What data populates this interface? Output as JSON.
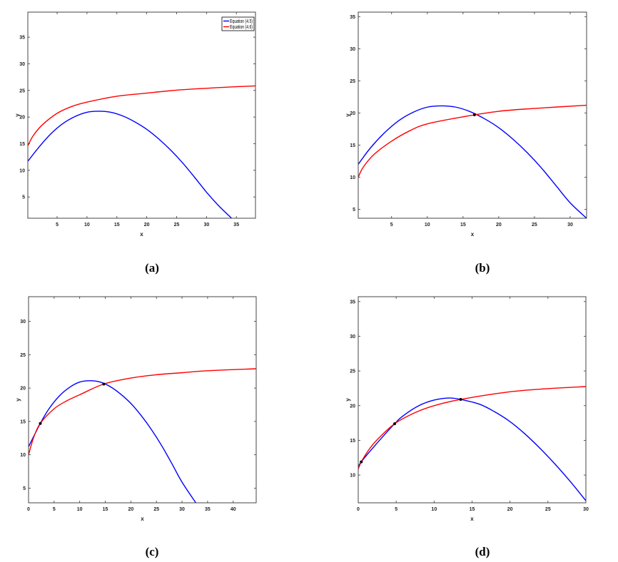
{
  "chart_data": [
    {
      "type": "line",
      "caption": "(a)",
      "xlabel": "x",
      "ylabel": "y",
      "xlim": [
        0.1,
        38.2
      ],
      "ylim": [
        1,
        39.7
      ],
      "xticks": [
        5,
        10,
        15,
        20,
        25,
        30,
        35
      ],
      "yticks": [
        5,
        10,
        15,
        20,
        25,
        30,
        35
      ],
      "grid": false,
      "legend": {
        "placement": "top-right",
        "entries": [
          "Equation (4.5)",
          "Equation (4.6)"
        ]
      },
      "series": [
        {
          "name": "Equation (4.5)",
          "color": "#0000ff",
          "x": [
            0.1,
            2,
            4,
            6,
            8,
            10,
            12,
            14,
            16,
            18,
            20,
            22,
            24,
            26,
            28,
            30,
            32,
            34.2
          ],
          "y": [
            11.7,
            14.4,
            16.9,
            18.8,
            20.1,
            20.9,
            21.1,
            20.9,
            20.2,
            19.1,
            17.7,
            15.9,
            13.8,
            11.4,
            8.7,
            5.9,
            3.4,
            1.0
          ]
        },
        {
          "name": "Equation (4.6)",
          "color": "#ff0000",
          "x": [
            0.1,
            1,
            2.5,
            5,
            7.5,
            10,
            15,
            20,
            25,
            30,
            35,
            38.2
          ],
          "y": [
            14.6,
            16.5,
            18.5,
            20.7,
            22.0,
            22.8,
            23.9,
            24.5,
            25.05,
            25.4,
            25.7,
            25.85
          ]
        }
      ],
      "intersections": []
    },
    {
      "type": "line",
      "caption": "(b)",
      "xlabel": "x",
      "ylabel": "y",
      "xlim": [
        0.33,
        32.3
      ],
      "ylim": [
        3.6,
        35.7
      ],
      "xticks": [
        5,
        10,
        15,
        20,
        25,
        30
      ],
      "yticks": [
        5,
        10,
        15,
        20,
        25,
        30,
        35
      ],
      "grid": false,
      "series": [
        {
          "color": "#0000ff",
          "x": [
            0.33,
            2,
            4,
            6,
            8,
            10,
            12,
            14,
            16,
            18,
            20,
            22,
            24,
            26,
            28,
            30,
            32.3
          ],
          "y": [
            12.0,
            14.5,
            16.9,
            18.8,
            20.1,
            20.9,
            21.1,
            20.9,
            20.2,
            19.1,
            17.7,
            15.9,
            13.8,
            11.4,
            8.7,
            6.0,
            3.6
          ]
        },
        {
          "color": "#ff0000",
          "x": [
            0.33,
            1,
            2.5,
            5,
            7.5,
            10,
            15,
            20,
            25,
            32.3
          ],
          "y": [
            10.0,
            11.5,
            13.5,
            15.6,
            17.2,
            18.3,
            19.4,
            20.26,
            20.7,
            21.2
          ]
        }
      ],
      "intersections": [
        {
          "x": 16.6,
          "y": 19.7
        }
      ]
    },
    {
      "type": "line",
      "caption": "(c)",
      "xlabel": "x",
      "ylabel": "y",
      "xlim": [
        0,
        44.5
      ],
      "ylim": [
        2.8,
        33.7
      ],
      "xticks": [
        0,
        5,
        10,
        15,
        20,
        25,
        30,
        35,
        40
      ],
      "yticks": [
        5,
        10,
        15,
        20,
        25,
        30
      ],
      "grid": false,
      "series": [
        {
          "color": "#0000ff",
          "x": [
            0,
            2.3,
            4,
            6,
            8,
            10,
            12,
            14,
            16,
            18,
            20,
            22,
            24,
            26,
            28,
            30,
            32.7
          ],
          "y": [
            11.2,
            14.7,
            16.9,
            18.8,
            20.1,
            20.9,
            21.1,
            20.9,
            20.2,
            19.1,
            17.7,
            15.9,
            13.8,
            11.4,
            8.7,
            5.9,
            2.8
          ]
        },
        {
          "color": "#ff0000",
          "x": [
            0,
            1,
            2.3,
            5,
            7.5,
            10,
            14.7,
            20,
            25,
            30,
            35,
            44.5
          ],
          "y": [
            10.0,
            12.6,
            14.7,
            16.9,
            18.1,
            19.0,
            20.6,
            21.5,
            22.0,
            22.3,
            22.6,
            22.9
          ]
        }
      ],
      "intersections": [
        {
          "x": 2.3,
          "y": 14.7
        },
        {
          "x": 14.7,
          "y": 20.6
        }
      ]
    },
    {
      "type": "line",
      "caption": "(d)",
      "xlabel": "x",
      "ylabel": "y",
      "xlim": [
        0,
        30
      ],
      "ylim": [
        6.0,
        35.7
      ],
      "xticks": [
        0,
        5,
        10,
        15,
        20,
        25,
        30
      ],
      "yticks": [
        10,
        15,
        20,
        25,
        30,
        35
      ],
      "grid": false,
      "series": [
        {
          "color": "#0000ff",
          "x": [
            0,
            0.4,
            2,
            4.8,
            6,
            8,
            10,
            12,
            13.5,
            16,
            18,
            20,
            22,
            24,
            26,
            28,
            30
          ],
          "y": [
            11.2,
            11.9,
            14.0,
            17.4,
            18.6,
            20.0,
            20.8,
            21.1,
            20.9,
            20.2,
            19.1,
            17.7,
            15.9,
            13.8,
            11.5,
            9.0,
            6.3
          ]
        },
        {
          "color": "#ff0000",
          "x": [
            0,
            0.4,
            1.5,
            2.5,
            4.8,
            7.5,
            10,
            13.5,
            20,
            25,
            30
          ],
          "y": [
            10.85,
            11.9,
            13.8,
            15.1,
            17.4,
            19.0,
            20.0,
            20.9,
            22.0,
            22.45,
            22.75
          ]
        }
      ],
      "intersections": [
        {
          "x": 0.4,
          "y": 11.9
        },
        {
          "x": 4.8,
          "y": 17.4
        },
        {
          "x": 13.5,
          "y": 20.9
        }
      ]
    }
  ]
}
